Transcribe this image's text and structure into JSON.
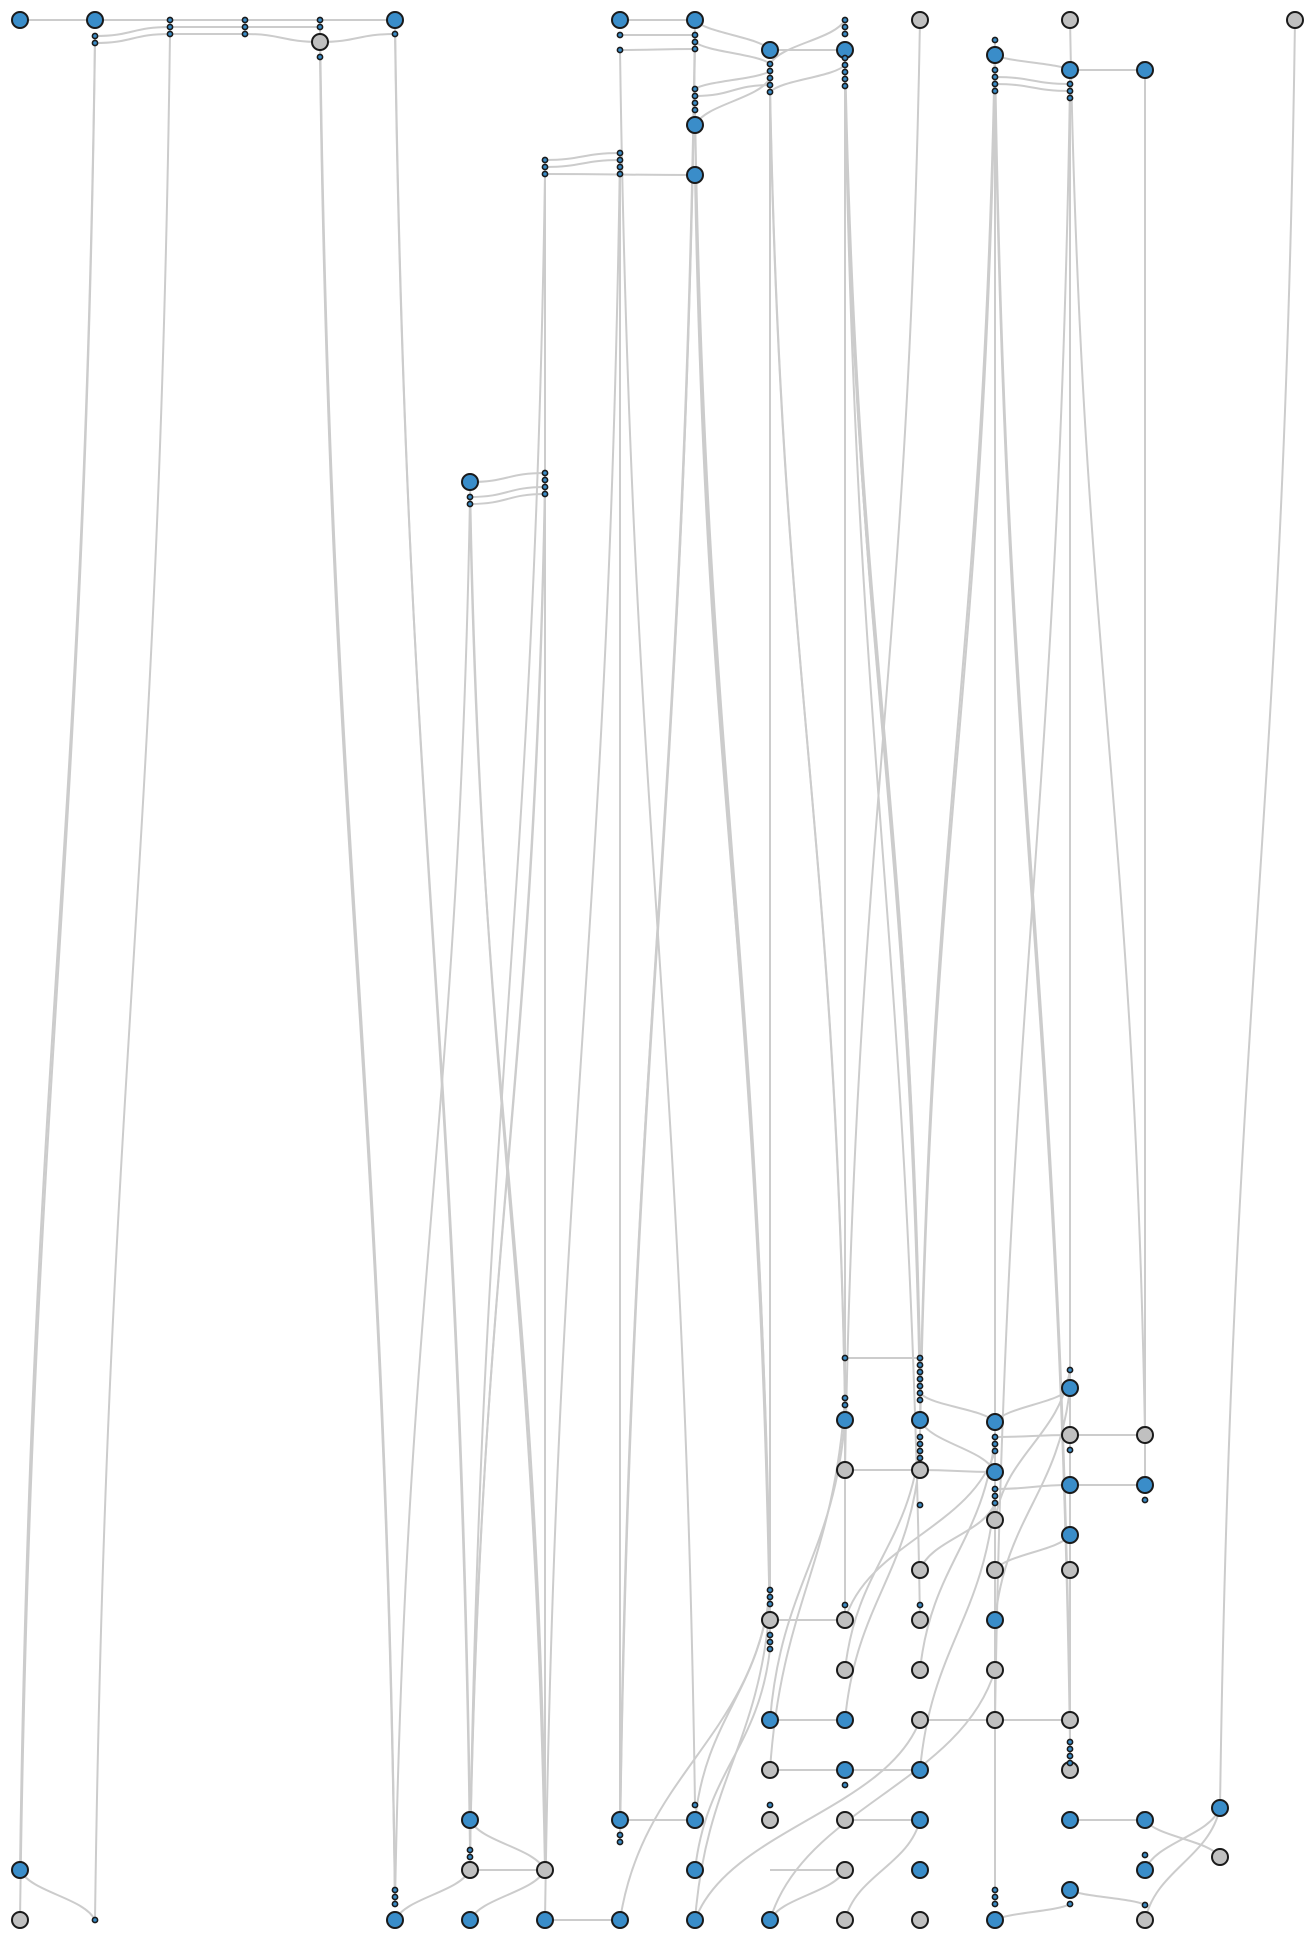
{
  "palette": {
    "node_blue": "#3a8dc9",
    "node_gray": "#c0c0c0",
    "node_stroke": "#1a1a1a",
    "edge": "#cccccc",
    "background": "#ffffff"
  }
}
